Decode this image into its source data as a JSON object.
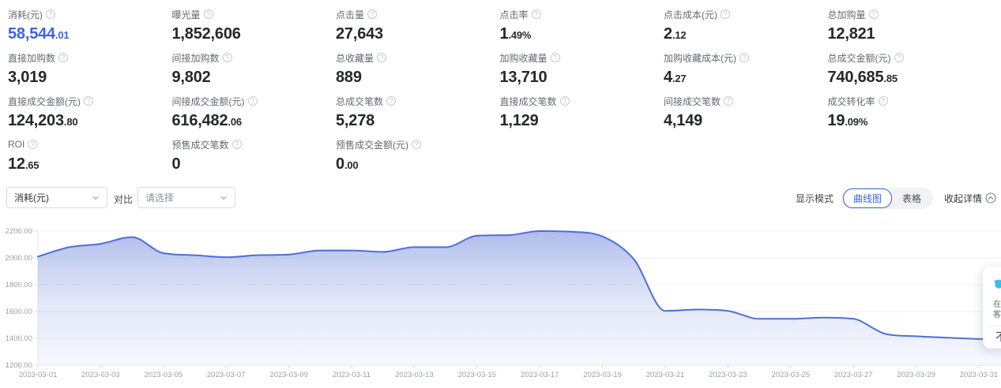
{
  "icons": {
    "help": "?"
  },
  "colors": {
    "accent_blue": "#3d63de",
    "line_blue": "#4263d8",
    "service_cyan": "#2fc3e8",
    "axis_label": "#9aa0a8",
    "gridline": "#eff1f5"
  },
  "metrics": {
    "cells": [
      {
        "label": "消耗(元)",
        "main": "58,544",
        "small": ".01",
        "highlight": true
      },
      {
        "label": "曝光量",
        "main": "1,852,606",
        "small": "",
        "highlight": false
      },
      {
        "label": "点击量",
        "main": "27,643",
        "small": "",
        "highlight": false
      },
      {
        "label": "点击率",
        "main": "1",
        "small": ".49%",
        "highlight": false
      },
      {
        "label": "点击成本(元)",
        "main": "2",
        "small": ".12",
        "highlight": false
      },
      {
        "label": "总加购量",
        "main": "12,821",
        "small": "",
        "highlight": false
      },
      {
        "label": "直接加购数",
        "main": "3,019",
        "small": "",
        "highlight": false
      },
      {
        "label": "间接加购数",
        "main": "9,802",
        "small": "",
        "highlight": false
      },
      {
        "label": "总收藏量",
        "main": "889",
        "small": "",
        "highlight": false
      },
      {
        "label": "加购收藏量",
        "main": "13,710",
        "small": "",
        "highlight": false
      },
      {
        "label": "加购收藏成本(元)",
        "main": "4",
        "small": ".27",
        "highlight": false
      },
      {
        "label": "总成交金额(元)",
        "main": "740,685",
        "small": ".85",
        "highlight": false
      },
      {
        "label": "直接成交金额(元)",
        "main": "124,203",
        "small": ".80",
        "highlight": false
      },
      {
        "label": "间接成交金额(元)",
        "main": "616,482",
        "small": ".06",
        "highlight": false
      },
      {
        "label": "总成交笔数",
        "main": "5,278",
        "small": "",
        "highlight": false
      },
      {
        "label": "直接成交笔数",
        "main": "1,129",
        "small": "",
        "highlight": false
      },
      {
        "label": "间接成交笔数",
        "main": "4,149",
        "small": "",
        "highlight": false
      },
      {
        "label": "成交转化率",
        "main": "19",
        "small": ".09%",
        "highlight": false
      },
      {
        "label": "ROI",
        "main": "12",
        "small": ".65",
        "highlight": false
      },
      {
        "label": "预售成交笔数",
        "main": "0",
        "small": "",
        "highlight": false
      },
      {
        "label": "预售成交金额(元)",
        "main": "0",
        "small": ".00",
        "highlight": false
      }
    ]
  },
  "controls": {
    "metric_select_value": "消耗(元)",
    "compare_label": "对比",
    "compare_placeholder": "请选择",
    "display_mode_label": "显示模式",
    "mode_curve": "曲线图",
    "mode_table": "表格",
    "collapse_label": "收起详情"
  },
  "chart_data": {
    "type": "area",
    "title": "",
    "xlabel": "",
    "ylabel": "消耗(元)",
    "smooth": true,
    "grid": true,
    "legend": "none",
    "ylim": [
      1200,
      2200
    ],
    "y_ticks": [
      "2200.00",
      "2000.00",
      "1800.00",
      "1600.00",
      "1400.00",
      "1200.00"
    ],
    "x_label_interval": 2,
    "x": [
      "2023-03-01",
      "2023-03-02",
      "2023-03-03",
      "2023-03-04",
      "2023-03-05",
      "2023-03-06",
      "2023-03-07",
      "2023-03-08",
      "2023-03-09",
      "2023-03-10",
      "2023-03-11",
      "2023-03-12",
      "2023-03-13",
      "2023-03-14",
      "2023-03-15",
      "2023-03-16",
      "2023-03-17",
      "2023-03-18",
      "2023-03-19",
      "2023-03-20",
      "2023-03-21",
      "2023-03-22",
      "2023-03-23",
      "2023-03-24",
      "2023-03-25",
      "2023-03-26",
      "2023-03-27",
      "2023-03-28",
      "2023-03-29",
      "2023-03-30",
      "2023-03-31"
    ],
    "series": [
      {
        "name": "消耗(元)",
        "values": [
          2010,
          2080,
          2105,
          2155,
          2035,
          2020,
          2005,
          2020,
          2025,
          2055,
          2055,
          2045,
          2080,
          2080,
          2165,
          2170,
          2200,
          2195,
          2160,
          1990,
          1605,
          1615,
          1605,
          1545,
          1545,
          1555,
          1545,
          1435,
          1415,
          1405,
          1395
        ]
      }
    ]
  },
  "service_widget": {
    "line1": "在线",
    "line2": "客服",
    "footer": "不"
  }
}
